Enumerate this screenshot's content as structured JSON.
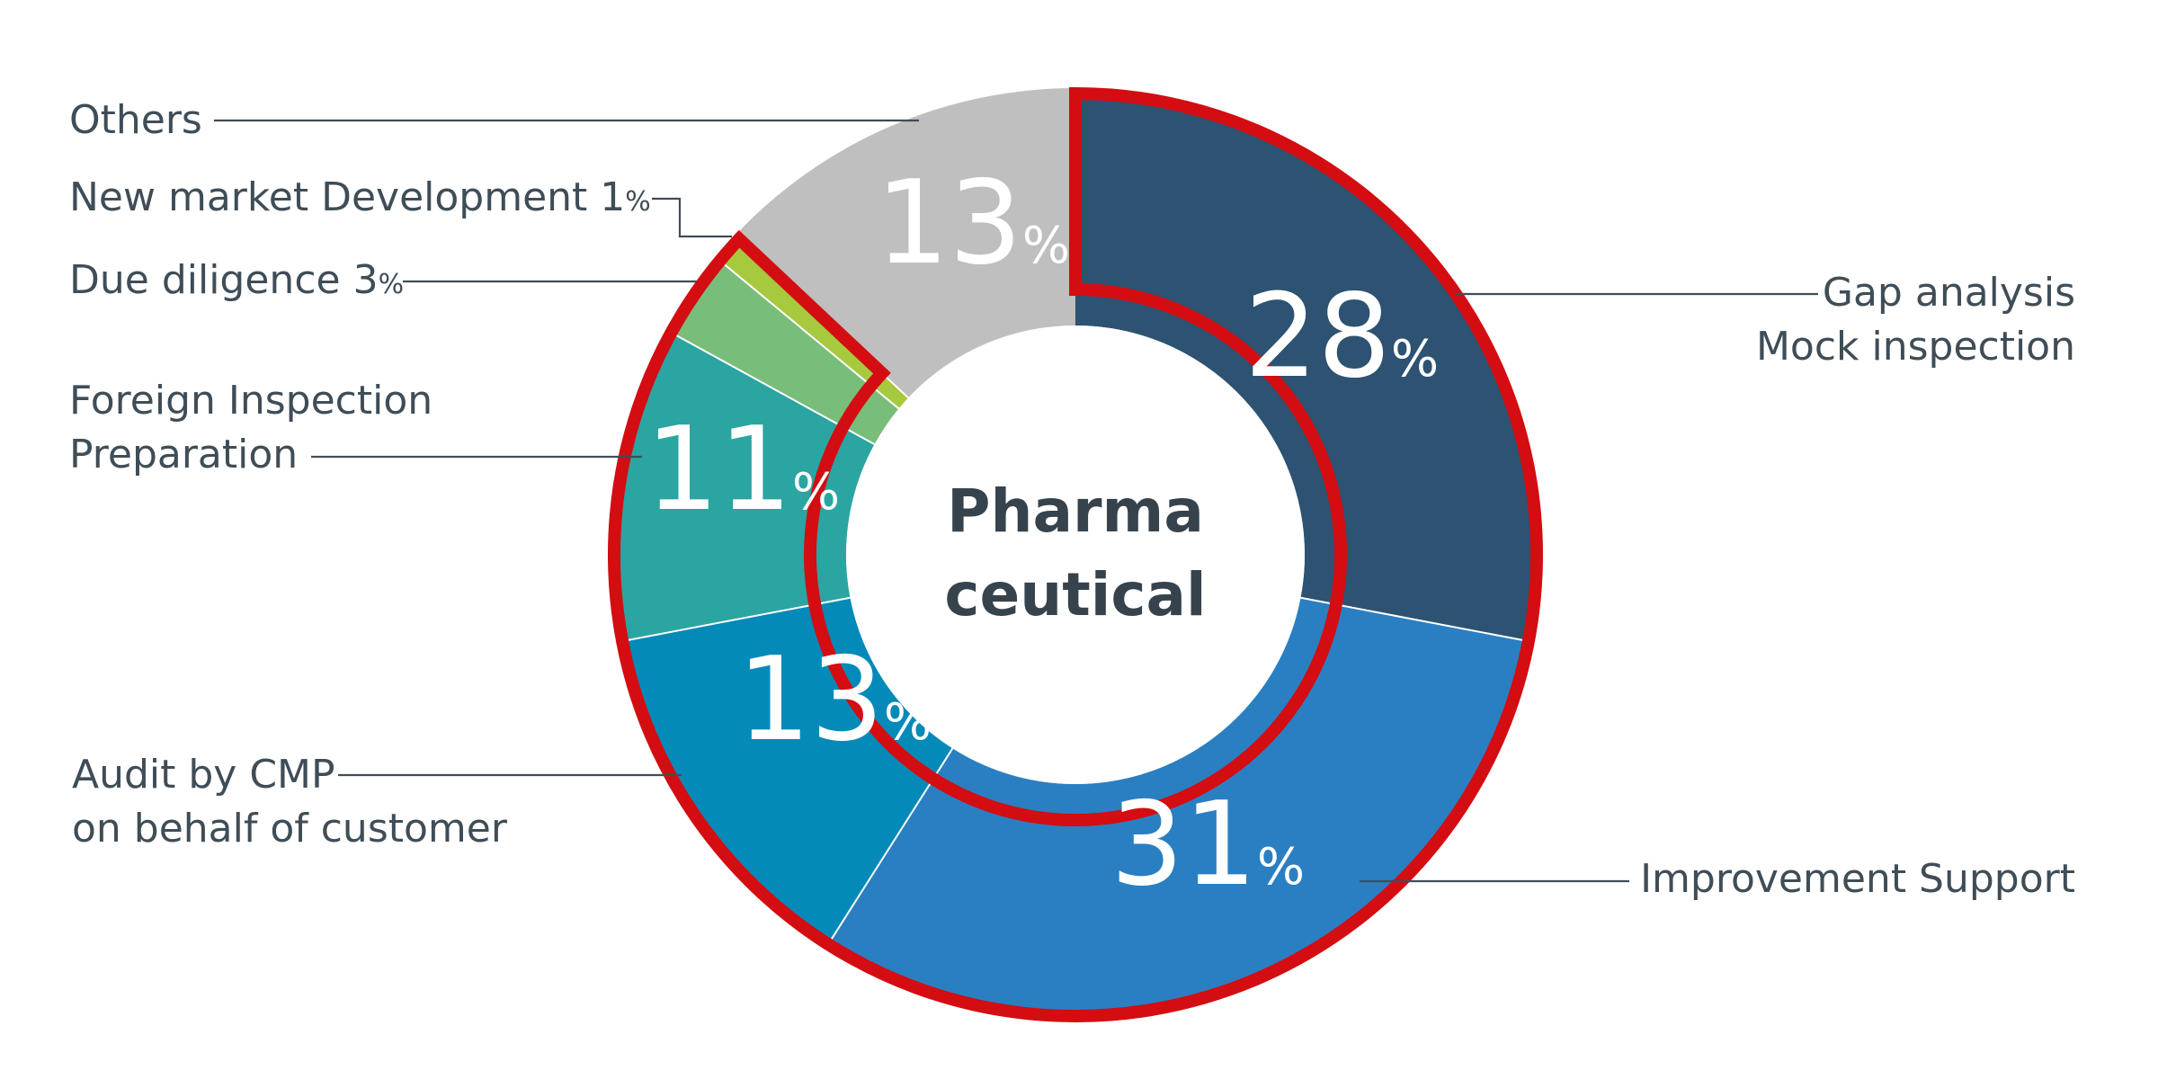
{
  "chart_data": {
    "type": "pie",
    "donut": true,
    "center_label": [
      "Pharma",
      "ceutical"
    ],
    "unit": "%",
    "slices": [
      {
        "key": "gap",
        "label": [
          "Gap  analysis",
          "Mock inspection"
        ],
        "value": 28,
        "color": "#2d5272",
        "value_label": "28"
      },
      {
        "key": "improve",
        "label": [
          "Improvement Support"
        ],
        "value": 31,
        "color": "#2a7fc2",
        "value_label": "31"
      },
      {
        "key": "audit",
        "label": [
          "Audit by CMP",
          "on behalf of customer"
        ],
        "value": 13,
        "color": "#048ab8",
        "value_label": "13"
      },
      {
        "key": "foreign",
        "label": [
          "Foreign Inspection",
          "Preparation"
        ],
        "value": 11,
        "color": "#2ba5a1",
        "value_label": "11"
      },
      {
        "key": "due",
        "label": [
          "Due diligence 3"
        ],
        "value": 3,
        "color": "#79bd7a",
        "suffix": "%"
      },
      {
        "key": "newmarket",
        "label": [
          "New market Development 1"
        ],
        "value": 1,
        "color": "#a6c93d",
        "suffix": "%"
      },
      {
        "key": "others",
        "label": [
          "Others"
        ],
        "value": 13,
        "color": "#bfbfbf",
        "value_label": "13"
      }
    ],
    "highlight": {
      "color": "#d30d11",
      "covers": [
        "gap",
        "improve",
        "audit",
        "foreign",
        "due",
        "newmarket"
      ]
    }
  }
}
